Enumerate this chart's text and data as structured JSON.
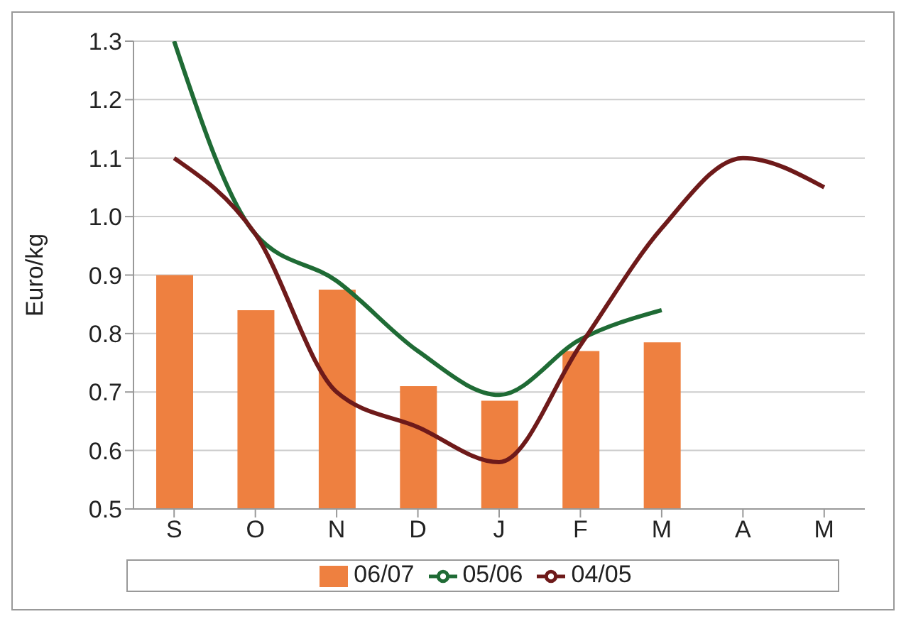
{
  "chart_data": {
    "type": "bar",
    "ylabel": "Euro/kg",
    "categories": [
      "S",
      "O",
      "N",
      "D",
      "J",
      "F",
      "M",
      "A",
      "M"
    ],
    "series": [
      {
        "name": "06/07",
        "color": "#ee8040",
        "values": [
          0.9,
          0.84,
          0.875,
          0.71,
          0.685,
          0.77,
          0.785,
          null,
          null
        ]
      },
      {
        "name": "05/06",
        "type": "line",
        "color": "#1f6b35",
        "values": [
          1.3,
          0.97,
          0.89,
          0.77,
          0.695,
          0.79,
          0.84,
          null,
          null
        ]
      },
      {
        "name": "04/05",
        "type": "line",
        "color": "#6e1a1a",
        "values": [
          1.1,
          0.97,
          0.7,
          0.64,
          0.58,
          0.78,
          0.98,
          1.1,
          1.05
        ]
      }
    ],
    "ylim": [
      0.5,
      1.3
    ],
    "yticks": [
      {
        "value": 0.5,
        "label": "0.5"
      },
      {
        "value": 0.6,
        "label": "0.6"
      },
      {
        "value": 0.7,
        "label": "0.7"
      },
      {
        "value": 0.8,
        "label": "0.8"
      },
      {
        "value": 0.9,
        "label": "0.9"
      },
      {
        "value": 1,
        "label": "1.0"
      },
      {
        "value": 1.1,
        "label": "1.1"
      },
      {
        "value": 1.2,
        "label": "1.2"
      },
      {
        "value": 1.3,
        "label": "1.3"
      }
    ],
    "grid": "y",
    "legend": "bottom",
    "marker": "none"
  }
}
